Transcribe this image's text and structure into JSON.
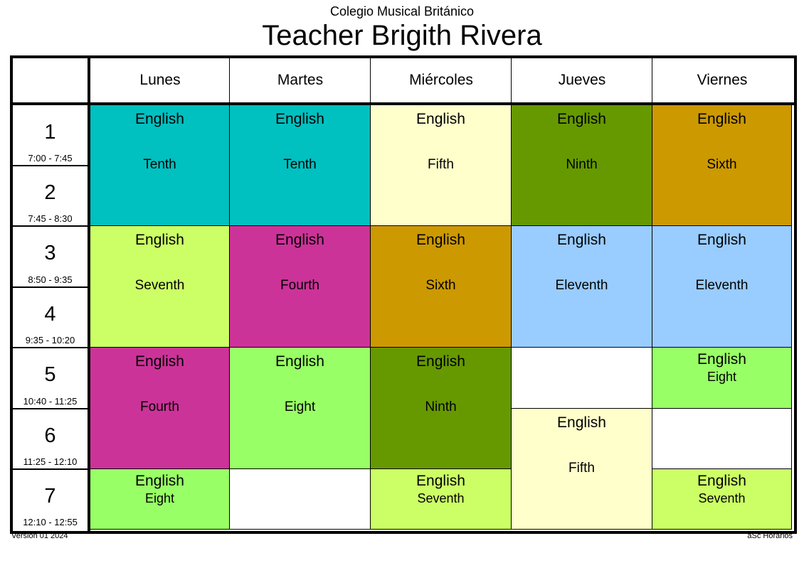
{
  "header": {
    "school": "Colegio Musical Británico",
    "title": "Teacher Brigith Rivera"
  },
  "days": [
    "Lunes",
    "Martes",
    "Miércoles",
    "Jueves",
    "Viernes"
  ],
  "periods": [
    {
      "num": "1",
      "time": "7:00 - 7:45"
    },
    {
      "num": "2",
      "time": "7:45 - 8:30"
    },
    {
      "num": "3",
      "time": "8:50 - 9:35"
    },
    {
      "num": "4",
      "time": "9:35 - 10:20"
    },
    {
      "num": "5",
      "time": "10:40 - 11:25"
    },
    {
      "num": "6",
      "time": "11:25 - 12:10"
    },
    {
      "num": "7",
      "time": "12:10 - 12:55"
    }
  ],
  "lessons": [
    {
      "day": 0,
      "period": 1,
      "span": 2,
      "subject": "English",
      "class": "Tenth",
      "color": "#00C0C0"
    },
    {
      "day": 1,
      "period": 1,
      "span": 2,
      "subject": "English",
      "class": "Tenth",
      "color": "#00C0C0"
    },
    {
      "day": 2,
      "period": 1,
      "span": 2,
      "subject": "English",
      "class": "Fifth",
      "color": "#FFFFCC"
    },
    {
      "day": 3,
      "period": 1,
      "span": 2,
      "subject": "English",
      "class": "Ninth",
      "color": "#669900"
    },
    {
      "day": 4,
      "period": 1,
      "span": 2,
      "subject": "English",
      "class": "Sixth",
      "color": "#CC9900"
    },
    {
      "day": 0,
      "period": 3,
      "span": 2,
      "subject": "English",
      "class": "Seventh",
      "color": "#CCFF66"
    },
    {
      "day": 1,
      "period": 3,
      "span": 2,
      "subject": "English",
      "class": "Fourth",
      "color": "#CC3399"
    },
    {
      "day": 2,
      "period": 3,
      "span": 2,
      "subject": "English",
      "class": "Sixth",
      "color": "#CC9900"
    },
    {
      "day": 3,
      "period": 3,
      "span": 2,
      "subject": "English",
      "class": "Eleventh",
      "color": "#99CCFF"
    },
    {
      "day": 4,
      "period": 3,
      "span": 2,
      "subject": "English",
      "class": "Eleventh",
      "color": "#99CCFF"
    },
    {
      "day": 0,
      "period": 5,
      "span": 2,
      "subject": "English",
      "class": "Fourth",
      "color": "#CC3399"
    },
    {
      "day": 1,
      "period": 5,
      "span": 2,
      "subject": "English",
      "class": "Eight",
      "color": "#99FF66"
    },
    {
      "day": 2,
      "period": 5,
      "span": 2,
      "subject": "English",
      "class": "Ninth",
      "color": "#669900"
    },
    {
      "day": 3,
      "period": 6,
      "span": 2,
      "subject": "English",
      "class": "Fifth",
      "color": "#FFFFCC"
    },
    {
      "day": 4,
      "period": 5,
      "span": 1,
      "subject": "English",
      "class": "Eight",
      "color": "#99FF66"
    },
    {
      "day": 0,
      "period": 7,
      "span": 1,
      "subject": "English",
      "class": "Eight",
      "color": "#99FF66"
    },
    {
      "day": 2,
      "period": 7,
      "span": 1,
      "subject": "English",
      "class": "Seventh",
      "color": "#CCFF66"
    },
    {
      "day": 4,
      "period": 7,
      "span": 1,
      "subject": "English",
      "class": "Seventh",
      "color": "#CCFF66"
    }
  ],
  "empty": [
    {
      "day": 3,
      "period": 5
    },
    {
      "day": 4,
      "period": 6
    },
    {
      "day": 1,
      "period": 7
    }
  ],
  "footer": {
    "version": "Versión 01 2024",
    "credit": "aSc Horarios"
  }
}
